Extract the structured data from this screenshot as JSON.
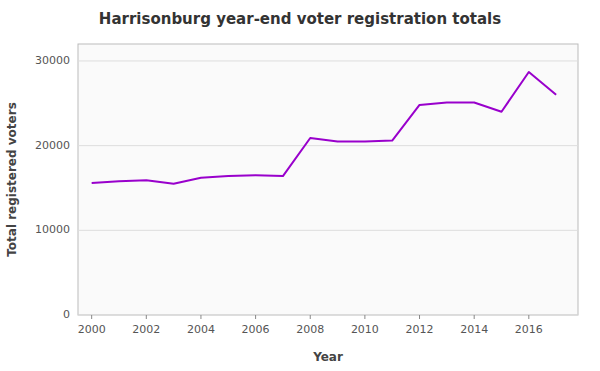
{
  "chart_data": {
    "type": "line",
    "title": "Harrisonburg year-end voter registration totals",
    "xlabel": "Year",
    "ylabel": "Total registered voters",
    "x": [
      2000,
      2001,
      2002,
      2003,
      2004,
      2005,
      2006,
      2007,
      2008,
      2009,
      2010,
      2011,
      2012,
      2013,
      2014,
      2015,
      2016,
      2017
    ],
    "values": [
      15600,
      15800,
      15900,
      15500,
      16200,
      16400,
      16500,
      16400,
      20900,
      20500,
      20500,
      20600,
      24800,
      25100,
      25100,
      24000,
      28700,
      26000
    ],
    "color": "#9900cc",
    "xlim": [
      1999.5,
      2017.8
    ],
    "ylim": [
      0,
      32000
    ],
    "xticks": [
      2000,
      2002,
      2004,
      2006,
      2008,
      2010,
      2012,
      2014,
      2016
    ],
    "yticks": [
      0,
      10000,
      20000,
      30000
    ],
    "grid": true
  }
}
